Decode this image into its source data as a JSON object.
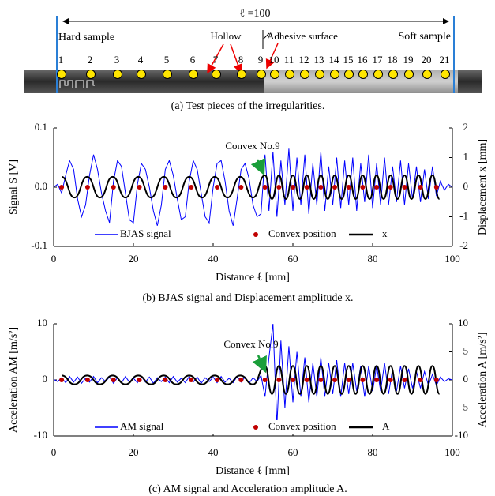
{
  "photo": {
    "length_label": "ℓ =100",
    "hard": "Hard sample",
    "hollow": "Hollow",
    "adhesive": "Adhesive surface",
    "soft": "Soft sample",
    "numbers": [
      "1",
      "2",
      "3",
      "4",
      "5",
      "6",
      "7",
      "8",
      "9",
      "10",
      "11",
      "12",
      "13",
      "14",
      "15",
      "16",
      "17",
      "18",
      "19",
      "20",
      "21"
    ],
    "caption": "(a) Test pieces of the irregularities."
  },
  "chart_data": [
    {
      "type": "line",
      "caption": "(b) BJAS signal and Displacement amplitude x.",
      "xlabel": "Distance  ℓ  [mm]",
      "ylabel": "Signal S [V]",
      "y2label": "Displacement x [mm]",
      "annotation": "Convex No.9",
      "xlim": [
        0,
        100
      ],
      "xticks": [
        0,
        20,
        40,
        60,
        80,
        100
      ],
      "ylim": [
        -0.1,
        0.1
      ],
      "yticks": [
        -0.1,
        {
          "value": 0,
          "label": "0.0"
        },
        0.1
      ],
      "y2lim": [
        -2,
        2
      ],
      "y2ticks": [
        -2,
        -1,
        0,
        1,
        2
      ],
      "series": [
        {
          "name": "BJAS signal",
          "color": "#0000ff",
          "style": "line",
          "x": [
            0,
            1,
            2,
            3,
            4,
            5,
            6,
            7,
            8,
            9,
            10,
            11,
            12,
            13,
            14,
            15,
            16,
            17,
            18,
            19,
            20,
            21,
            22,
            23,
            24,
            25,
            26,
            27,
            28,
            29,
            30,
            31,
            32,
            33,
            34,
            35,
            36,
            37,
            38,
            39,
            40,
            41,
            42,
            43,
            44,
            45,
            46,
            47,
            48,
            49,
            50,
            51,
            52,
            53,
            54,
            55,
            56,
            57,
            58,
            59,
            60,
            61,
            62,
            63,
            64,
            65,
            66,
            67,
            68,
            69,
            70,
            71,
            72,
            73,
            74,
            75,
            76,
            77,
            78,
            79,
            80,
            81,
            82,
            83,
            84,
            85,
            86,
            87,
            88,
            89,
            90,
            91,
            92,
            93,
            94,
            95,
            96,
            97,
            98,
            99,
            100
          ],
          "values": [
            0,
            0.005,
            -0.01,
            0.02,
            0.045,
            0.03,
            -0.02,
            -0.05,
            -0.03,
            0.02,
            0.055,
            0.03,
            -0.01,
            -0.04,
            -0.06,
            0.01,
            0.045,
            0.035,
            -0.01,
            -0.055,
            -0.06,
            0.005,
            0.04,
            0.03,
            0,
            -0.04,
            -0.065,
            -0.03,
            0.03,
            0.045,
            0.02,
            -0.02,
            -0.055,
            -0.05,
            0.01,
            0.045,
            0.03,
            -0.01,
            -0.05,
            -0.06,
            0,
            0.04,
            0.045,
            0.01,
            -0.04,
            -0.065,
            -0.02,
            0.03,
            0.04,
            0.015,
            -0.03,
            -0.05,
            -0.045,
            0.055,
            -0.04,
            0.06,
            -0.05,
            0.045,
            -0.03,
            0.065,
            -0.04,
            0.05,
            -0.03,
            0.055,
            -0.045,
            0.04,
            -0.03,
            0.06,
            -0.04,
            0.035,
            -0.03,
            0.05,
            -0.035,
            0.045,
            -0.03,
            0.05,
            -0.04,
            0.04,
            -0.025,
            0.055,
            -0.035,
            0.04,
            -0.03,
            0.05,
            -0.03,
            0.035,
            -0.025,
            0.045,
            -0.03,
            0.04,
            -0.02,
            0.035,
            -0.025,
            0.03,
            -0.02,
            0.035,
            -0.015,
            0.01,
            -0.005,
            0.005,
            0
          ]
        },
        {
          "name": "Convex position",
          "color": "#c00000",
          "style": "points",
          "x": [
            2,
            8.5,
            15,
            21.5,
            28,
            34.5,
            41,
            47,
            53,
            56.5,
            60,
            63.5,
            67,
            70.5,
            74,
            77.5,
            81,
            84.5,
            88,
            92,
            96
          ],
          "values": [
            0,
            0,
            0,
            0,
            0,
            0,
            0,
            0,
            0,
            0,
            0,
            0,
            0,
            0,
            0,
            0,
            0,
            0,
            0,
            0,
            0
          ]
        },
        {
          "name": "x",
          "color": "#000000",
          "style": "curve",
          "axis": "y2",
          "x": [
            2,
            5.2,
            8.4,
            11.6,
            14.8,
            18,
            21.2,
            24.4,
            27.6,
            30.8,
            34,
            37.2,
            40.4,
            43.6,
            46.8,
            50,
            53,
            54.75,
            56.5,
            58.25,
            60,
            61.75,
            63.5,
            65.25,
            67,
            68.75,
            70.5,
            72.25,
            74,
            75.75,
            77.5,
            79.25,
            81,
            82.75,
            84.5,
            86.25,
            88,
            89.75,
            91.5,
            93.25,
            95,
            96.75
          ],
          "values": [
            0.35,
            -0.35,
            0.35,
            -0.35,
            0.35,
            -0.35,
            0.35,
            -0.35,
            0.35,
            -0.35,
            0.35,
            -0.35,
            0.35,
            -0.35,
            0.35,
            -0.35,
            0.4,
            -0.4,
            0.4,
            -0.4,
            0.4,
            -0.4,
            0.4,
            -0.4,
            0.4,
            -0.4,
            0.4,
            -0.4,
            0.4,
            -0.4,
            0.4,
            -0.4,
            0.4,
            -0.4,
            0.4,
            -0.4,
            0.4,
            -0.4,
            0.4,
            -0.4,
            0.4,
            -0.4
          ]
        }
      ]
    },
    {
      "type": "line",
      "caption": "(c) AM signal and Acceleration amplitude A.",
      "xlabel": "Distance  ℓ  [mm]",
      "ylabel": "Acceleration AM [m/s²]",
      "y2label": "Acceleration A [m/s²]",
      "annotation": "Convex No.9",
      "xlim": [
        0,
        100
      ],
      "xticks": [
        0,
        20,
        40,
        60,
        80,
        100
      ],
      "ylim": [
        -10,
        10
      ],
      "yticks": [
        -10,
        0,
        10
      ],
      "y2lim": [
        -10,
        10
      ],
      "y2ticks": [
        -10,
        -5,
        0,
        5,
        10
      ],
      "series": [
        {
          "name": "AM signal",
          "color": "#0000ff",
          "style": "line",
          "x": [
            0,
            1,
            2,
            3,
            4,
            5,
            6,
            7,
            8,
            9,
            10,
            11,
            12,
            13,
            14,
            15,
            16,
            17,
            18,
            19,
            20,
            21,
            22,
            23,
            24,
            25,
            26,
            27,
            28,
            29,
            30,
            31,
            32,
            33,
            34,
            35,
            36,
            37,
            38,
            39,
            40,
            41,
            42,
            43,
            44,
            45,
            46,
            47,
            48,
            49,
            50,
            51,
            52,
            53,
            54,
            55,
            56,
            57,
            58,
            59,
            60,
            61,
            62,
            63,
            64,
            65,
            66,
            67,
            68,
            69,
            70,
            71,
            72,
            73,
            74,
            75,
            76,
            77,
            78,
            79,
            80,
            81,
            82,
            83,
            84,
            85,
            86,
            87,
            88,
            89,
            90,
            91,
            92,
            93,
            94,
            95,
            96,
            97,
            98,
            99,
            100
          ],
          "values": [
            0.1,
            -0.3,
            0.4,
            -0.5,
            0.6,
            -0.4,
            0.5,
            -0.6,
            0.3,
            -0.4,
            0.6,
            -0.5,
            0.4,
            -0.3,
            0.5,
            -0.6,
            0.4,
            -0.5,
            0.6,
            -0.4,
            0.3,
            -0.5,
            0.6,
            -0.4,
            0.5,
            -0.6,
            0.4,
            -0.3,
            0.5,
            -0.5,
            0.6,
            -0.4,
            0.3,
            -0.5,
            0.6,
            -0.4,
            0.5,
            -0.6,
            0.4,
            -0.3,
            0.5,
            -0.5,
            0.6,
            -0.4,
            0.3,
            -0.5,
            0.6,
            -0.4,
            0.5,
            -0.6,
            0.4,
            -0.3,
            0.8,
            -3,
            4,
            10,
            -8,
            7,
            -5,
            6,
            -4,
            5,
            -3,
            4,
            -4,
            3,
            -3,
            4,
            -3,
            3,
            -2.5,
            3.5,
            -3,
            3,
            -2.5,
            3,
            -2,
            2.5,
            -3,
            2.5,
            -2,
            2.5,
            -2,
            3,
            -2.5,
            2,
            -2,
            2.5,
            -1.5,
            2,
            -1.5,
            1.5,
            -1.5,
            1.5,
            -1,
            1,
            -1,
            0.5,
            -0.3,
            0.2,
            0
          ]
        },
        {
          "name": "Convex position",
          "color": "#c00000",
          "style": "points",
          "x": [
            2,
            8.5,
            15,
            21.5,
            28,
            34.5,
            41,
            47,
            53,
            56.5,
            60,
            63.5,
            67,
            70.5,
            74,
            77.5,
            81,
            84.5,
            88,
            92,
            96
          ],
          "values": [
            0,
            0,
            0,
            0,
            0,
            0,
            0,
            0,
            0,
            0,
            0,
            0,
            0,
            0,
            0,
            0,
            0,
            0,
            0,
            0,
            0
          ]
        },
        {
          "name": "A",
          "color": "#000000",
          "style": "curve",
          "axis": "y2",
          "x": [
            2,
            5.2,
            8.4,
            11.6,
            14.8,
            18,
            21.2,
            24.4,
            27.6,
            30.8,
            34,
            37.2,
            40.4,
            43.6,
            46.8,
            50,
            53,
            54.75,
            56.5,
            58.25,
            60,
            61.75,
            63.5,
            65.25,
            67,
            68.75,
            70.5,
            72.25,
            74,
            75.75,
            77.5,
            79.25,
            81,
            82.75,
            84.5,
            86.25,
            88,
            89.75,
            91.5,
            93.25,
            95,
            96.75
          ],
          "values": [
            0.8,
            -0.8,
            0.8,
            -0.8,
            0.8,
            -0.8,
            0.8,
            -0.8,
            0.8,
            -0.8,
            0.8,
            -0.8,
            0.8,
            -0.8,
            0.8,
            -0.8,
            2.5,
            -2.5,
            2.5,
            -2.5,
            2.5,
            -2.5,
            2.5,
            -2.5,
            2.5,
            -2.5,
            2.5,
            -2.5,
            2.5,
            -2.5,
            2.5,
            -2.5,
            2.5,
            -2.5,
            2.5,
            -2.5,
            2.5,
            -2.5,
            2.5,
            -2.5,
            2.5,
            -2.5
          ]
        }
      ]
    }
  ]
}
